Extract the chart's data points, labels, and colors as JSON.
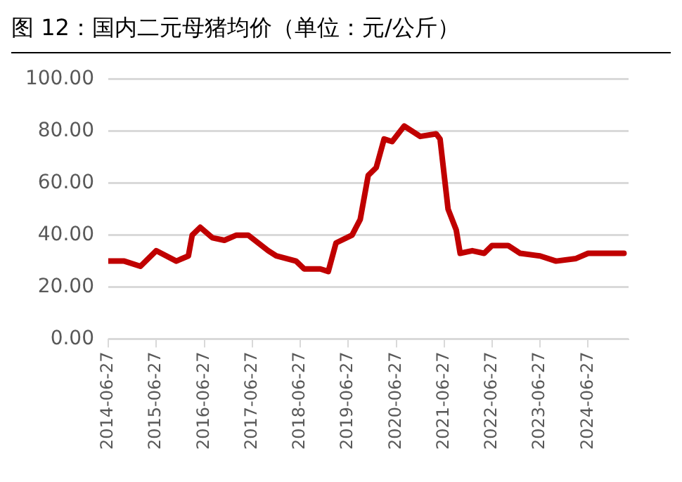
{
  "chart_data": {
    "type": "line",
    "title": "图 12：国内二元母猪均价（单位：元/公斤）",
    "x": [
      "2014-06-27",
      "2014-10-27",
      "2015-02-27",
      "2015-06-27",
      "2015-11-27",
      "2016-02-27",
      "2016-03-27",
      "2016-05-27",
      "2016-08-27",
      "2016-11-27",
      "2017-02-27",
      "2017-05-27",
      "2017-10-27",
      "2017-12-27",
      "2018-05-27",
      "2018-07-27",
      "2018-11-27",
      "2019-01-27",
      "2019-03-27",
      "2019-07-27",
      "2019-09-27",
      "2019-11-27",
      "2020-01-27",
      "2020-03-27",
      "2020-05-27",
      "2020-08-27",
      "2020-12-27",
      "2021-04-27",
      "2021-05-27",
      "2021-07-27",
      "2021-09-27",
      "2021-10-27",
      "2022-01-27",
      "2022-04-27",
      "2022-06-27",
      "2022-10-27",
      "2023-01-27",
      "2023-06-27",
      "2023-10-27",
      "2024-03-27",
      "2024-06-27",
      "2025-03-27"
    ],
    "series": [
      {
        "color": "#c00000",
        "values": [
          30,
          30,
          28,
          34,
          30,
          32,
          40,
          43,
          39,
          38,
          40,
          40,
          34,
          32,
          30,
          27,
          27,
          26,
          37,
          40,
          46,
          63,
          66,
          77,
          76,
          82,
          78,
          79,
          77,
          50,
          42,
          33,
          34,
          33,
          36,
          36,
          33,
          32,
          30,
          31,
          33,
          33
        ]
      }
    ],
    "xlim": [
      "2014-06-27",
      "2025-05-01"
    ],
    "xticks": [
      "2014-06-27",
      "2015-06-27",
      "2016-06-27",
      "2017-06-27",
      "2018-06-27",
      "2019-06-27",
      "2020-06-27",
      "2021-06-27",
      "2022-06-27",
      "2023-06-27",
      "2024-06-27"
    ],
    "ylim": [
      0,
      100
    ],
    "yticks": [
      {
        "value": 0,
        "label": "0.00"
      },
      {
        "value": 20,
        "label": "20.00"
      },
      {
        "value": 40,
        "label": "40.00"
      },
      {
        "value": 60,
        "label": "60.00"
      },
      {
        "value": 80,
        "label": "80.00"
      },
      {
        "value": 100,
        "label": "100.00"
      }
    ],
    "grid": "y",
    "legend": false,
    "marker": "none",
    "line_style": "solid"
  }
}
